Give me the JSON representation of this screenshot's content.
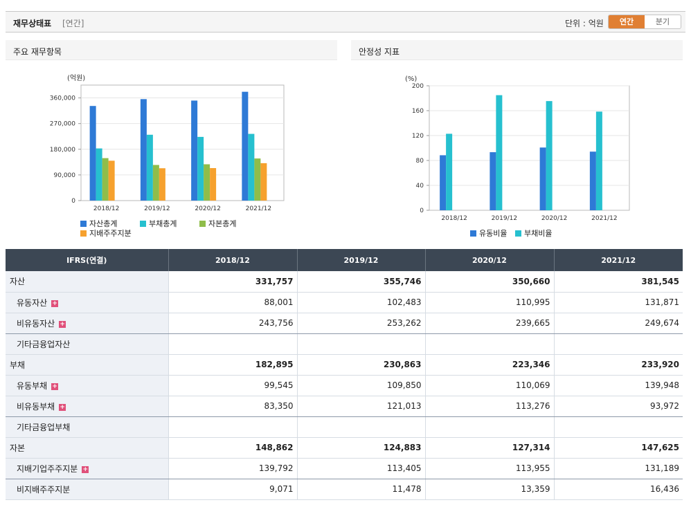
{
  "header": {
    "title": "재무상태표",
    "sub": "[연간]",
    "unit": "단위 : 억원",
    "tab_annual": "연간",
    "tab_quarter": "분기"
  },
  "panel1": {
    "title": "주요 재무항목"
  },
  "panel2": {
    "title": "안정성 지표"
  },
  "chart_data": [
    {
      "type": "bar",
      "ylabel": "(억원)",
      "categories": [
        "2018/12",
        "2019/12",
        "2020/12",
        "2021/12"
      ],
      "ylim": [
        0,
        405000
      ],
      "yticks": [
        0,
        90000,
        180000,
        270000,
        360000
      ],
      "ytick_labels": [
        "0",
        "90,000",
        "180,000",
        "270,000",
        "360,000"
      ],
      "grid": true,
      "legend": "bottom",
      "series": [
        {
          "name": "자산총계",
          "color": "#2e7ad6",
          "values": [
            331757,
            355746,
            350660,
            381545
          ]
        },
        {
          "name": "부채총계",
          "color": "#26c0cf",
          "values": [
            182895,
            230863,
            223346,
            233920
          ]
        },
        {
          "name": "자본총계",
          "color": "#8fbd4a",
          "values": [
            148862,
            124883,
            127314,
            147625
          ]
        },
        {
          "name": "지배주주지분",
          "color": "#f6a12e",
          "values": [
            139792,
            113405,
            113955,
            131189
          ]
        }
      ]
    },
    {
      "type": "bar",
      "ylabel": "(%)",
      "categories": [
        "2018/12",
        "2019/12",
        "2020/12",
        "2021/12"
      ],
      "ylim": [
        0,
        200
      ],
      "yticks": [
        0,
        40,
        80,
        120,
        160,
        200
      ],
      "ytick_labels": [
        "0",
        "40",
        "80",
        "120",
        "160",
        "200"
      ],
      "grid": true,
      "legend": "bottom",
      "series": [
        {
          "name": "유동비율",
          "color": "#2e7ad6",
          "values": [
            88.4,
            93.3,
            100.8,
            94.2
          ]
        },
        {
          "name": "부채비율",
          "color": "#26c0cf",
          "values": [
            122.9,
            184.9,
            175.4,
            158.5
          ]
        }
      ]
    }
  ],
  "table": {
    "header": [
      "IFRS(연결)",
      "2018/12",
      "2019/12",
      "2020/12",
      "2021/12"
    ],
    "rows": [
      {
        "label": "자산",
        "values": [
          "331,757",
          "355,746",
          "350,660",
          "381,545"
        ]
      },
      {
        "label": "유동자산",
        "values": [
          "88,001",
          "102,483",
          "110,995",
          "131,871"
        ]
      },
      {
        "label": "비유동자산",
        "values": [
          "243,756",
          "253,262",
          "239,665",
          "249,674"
        ]
      },
      {
        "label": "기타금융업자산",
        "values": [
          "",
          "",
          "",
          ""
        ]
      },
      {
        "label": "부채",
        "values": [
          "182,895",
          "230,863",
          "223,346",
          "233,920"
        ]
      },
      {
        "label": "유동부채",
        "values": [
          "99,545",
          "109,850",
          "110,069",
          "139,948"
        ]
      },
      {
        "label": "비유동부채",
        "values": [
          "83,350",
          "121,013",
          "113,276",
          "93,972"
        ]
      },
      {
        "label": "기타금융업부채",
        "values": [
          "",
          "",
          "",
          ""
        ]
      },
      {
        "label": "자본",
        "values": [
          "148,862",
          "124,883",
          "127,314",
          "147,625"
        ]
      },
      {
        "label": "지배기업주주지분",
        "values": [
          "139,792",
          "113,405",
          "113,955",
          "131,189"
        ]
      },
      {
        "label": "비지배주주지분",
        "values": [
          "9,071",
          "11,478",
          "13,359",
          "16,436"
        ]
      }
    ],
    "expand_icon": "+"
  }
}
